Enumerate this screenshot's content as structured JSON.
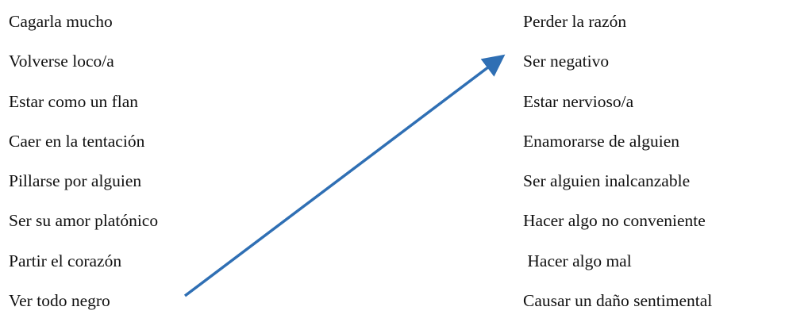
{
  "left_column": [
    "Cagarla mucho",
    "Volverse loco/a",
    "Estar como un flan",
    "Caer en la tentación",
    "Pillarse por alguien",
    "Ser su amor platónico",
    "Partir el corazón",
    "Ver todo negro"
  ],
  "right_column": [
    "Perder la razón",
    "Ser negativo",
    "Estar nervioso/a",
    "Enamorarse de alguien",
    "Ser alguien inalcanzable",
    "Hacer algo no conveniente",
    " Hacer algo mal",
    "Causar un daño sentimental"
  ],
  "arrow": {
    "from": "Ver todo negro",
    "to": "Ser negativo",
    "color": "#2f6fb4"
  }
}
